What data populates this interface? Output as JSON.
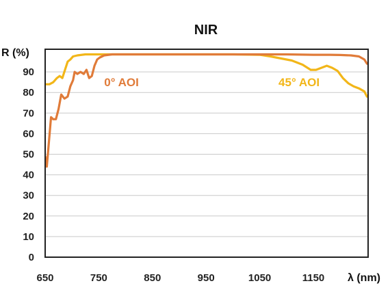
{
  "chart_data": {
    "type": "line",
    "title": "NIR",
    "xlabel": "λ (nm)",
    "ylabel": "R (%)",
    "xlim": [
      650,
      1250
    ],
    "ylim": [
      0,
      100
    ],
    "xticks": [
      650,
      750,
      850,
      950,
      1050,
      1150
    ],
    "yticks": [
      0,
      10,
      20,
      30,
      40,
      50,
      60,
      70,
      80,
      90
    ],
    "grid": "horizontal",
    "series": [
      {
        "name": "0° AOI",
        "color": "#E07B39",
        "x": [
          650,
          653,
          657,
          661,
          665,
          670,
          675,
          680,
          686,
          692,
          697,
          702,
          705,
          710,
          716,
          722,
          727,
          732,
          737,
          742,
          747,
          752,
          760,
          775,
          800,
          850,
          950,
          1050,
          1100,
          1150,
          1180,
          1200,
          1220,
          1235,
          1245,
          1250
        ],
        "y": [
          49,
          44,
          56,
          68,
          67,
          67,
          72,
          79,
          77,
          78,
          83,
          86,
          90,
          89,
          90,
          89,
          91,
          87,
          88,
          93,
          96,
          97,
          98,
          98.5,
          98.5,
          98.5,
          98.5,
          98.5,
          98.5,
          98.3,
          98.3,
          98.2,
          98,
          97.5,
          96,
          94
        ]
      },
      {
        "name": "45° AOI",
        "color": "#F2B619",
        "x": [
          650,
          658,
          665,
          672,
          677,
          682,
          687,
          692,
          697,
          702,
          710,
          725,
          750,
          800,
          900,
          1000,
          1050,
          1070,
          1090,
          1110,
          1130,
          1145,
          1155,
          1165,
          1175,
          1185,
          1195,
          1205,
          1215,
          1225,
          1235,
          1245,
          1250
        ],
        "y": [
          84,
          84,
          85,
          87,
          88,
          87,
          91,
          95,
          96,
          97.5,
          98,
          98.5,
          98.5,
          98.5,
          98.5,
          98.5,
          98.3,
          97.5,
          96.5,
          95.5,
          93.5,
          91,
          91,
          92,
          93,
          92,
          90.5,
          87,
          84.5,
          83,
          82,
          80.5,
          78
        ]
      }
    ],
    "annotations": [
      {
        "text": "0° AOI",
        "x": 760,
        "y": 83,
        "series": 0
      },
      {
        "text": "45° AOI",
        "x": 1085,
        "y": 83,
        "series": 1
      }
    ]
  }
}
